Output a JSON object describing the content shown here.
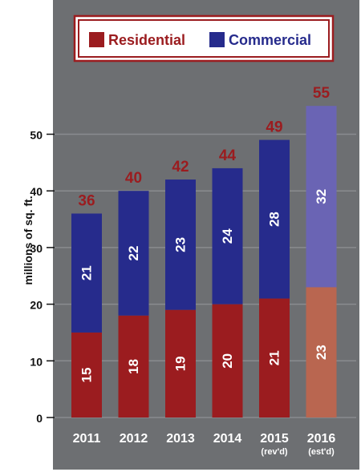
{
  "chart_data": {
    "type": "bar",
    "stacked": true,
    "ylabel": "millions of sq. ft.",
    "ylim": [
      0,
      60
    ],
    "yticks": [
      0,
      10,
      20,
      30,
      40,
      50
    ],
    "grid": true,
    "legend_position": "top",
    "categories": [
      "2011",
      "2012",
      "2013",
      "2014",
      "2015",
      "2016"
    ],
    "category_notes": [
      "",
      "",
      "",
      "",
      "(rev'd)",
      "(est'd)"
    ],
    "totals": [
      36,
      40,
      42,
      44,
      49,
      55
    ],
    "series": [
      {
        "name": "Residential",
        "color": "#9b1c1f",
        "values": [
          15,
          18,
          19,
          20,
          21,
          23
        ],
        "estimate_color": "#b96650"
      },
      {
        "name": "Commercial",
        "color": "#262b8c",
        "values": [
          21,
          22,
          23,
          24,
          28,
          32
        ],
        "estimate_color": "#6a64b4"
      }
    ]
  },
  "colors": {
    "frame": "#6d6f72",
    "grid": "#8a8c8f",
    "accent": "#9b1c1f"
  }
}
